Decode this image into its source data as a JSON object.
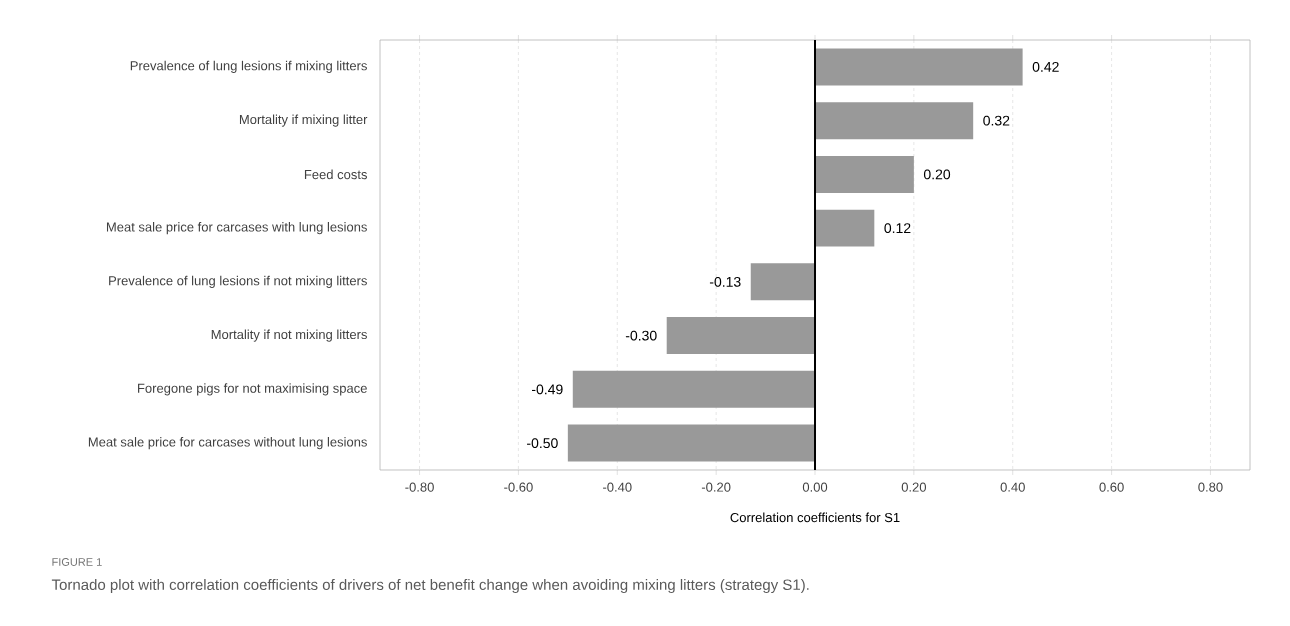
{
  "chart_data": {
    "type": "bar",
    "orientation": "horizontal",
    "categories": [
      "Prevalence of lung lesions if mixing litters",
      "Mortality if mixing litter",
      "Feed costs",
      "Meat sale price for carcases with lung lesions",
      "Prevalence of lung lesions if not mixing litters",
      "Mortality if not mixing litters",
      "Foregone pigs for not maximising space",
      "Meat sale price for carcases without lung lesions"
    ],
    "values": [
      0.42,
      0.32,
      0.2,
      0.12,
      -0.13,
      -0.3,
      -0.49,
      -0.5
    ],
    "value_labels": [
      "0.42",
      "0.32",
      "0.20",
      "0.12",
      "-0.13",
      "-0.30",
      "-0.49",
      "-0.50"
    ],
    "color": "#999999",
    "xlabel": "Correlation coefficients for S1",
    "xlim": [
      -0.88,
      0.88
    ],
    "xticks": [
      {
        "value": -0.8,
        "label": "-0.80"
      },
      {
        "value": -0.6,
        "label": "-0.60"
      },
      {
        "value": -0.4,
        "label": "-0.40"
      },
      {
        "value": -0.2,
        "label": "-0.20"
      },
      {
        "value": 0,
        "label": "0.00"
      },
      {
        "value": 0.2,
        "label": "0.20"
      },
      {
        "value": 0.4,
        "label": "0.40"
      },
      {
        "value": 0.6,
        "label": "0.60"
      },
      {
        "value": 0.8,
        "label": "0.80"
      }
    ],
    "grid": "x",
    "ref_lines": [
      {
        "axis": "x",
        "value": 0,
        "color": "#000000"
      }
    ],
    "annotations": [
      "FIGURE 1",
      "Tornado plot with correlation coefficients of drivers of net benefit change when avoiding mixing litters (strategy S1)."
    ]
  }
}
